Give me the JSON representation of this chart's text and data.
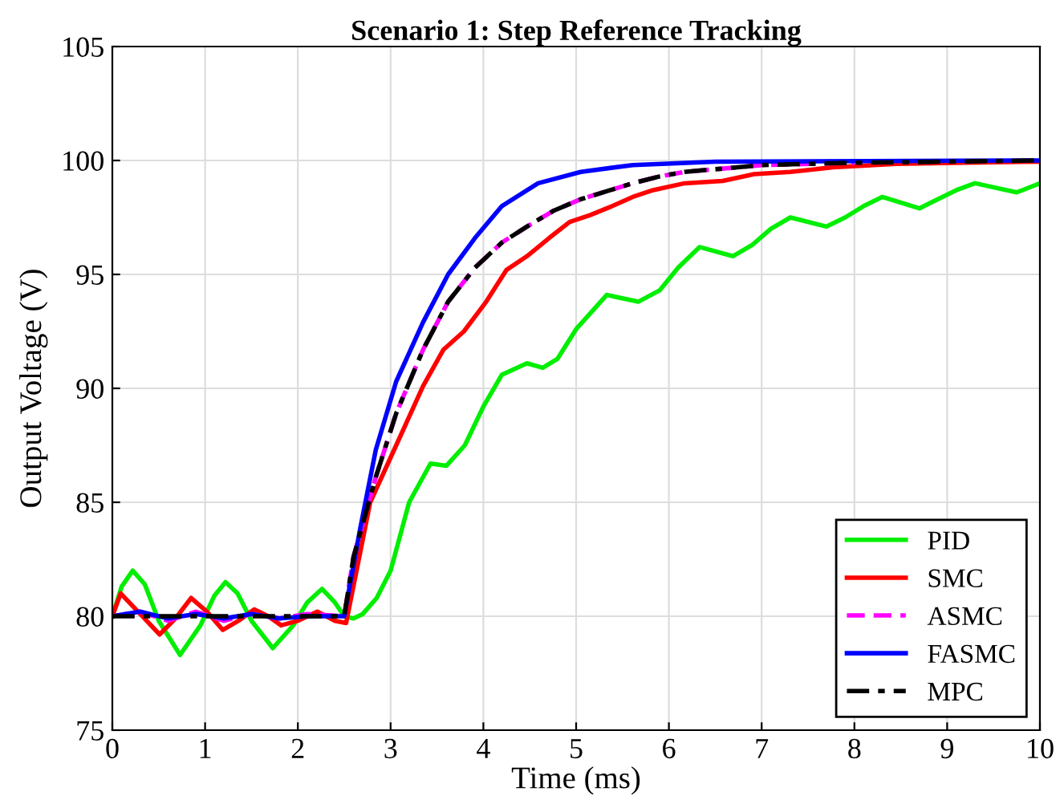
{
  "chart_data": {
    "type": "line",
    "title": "Scenario 1: Step Reference Tracking",
    "xlabel": "Time (ms)",
    "ylabel": "Output Voltage (V)",
    "xlim": [
      0,
      10
    ],
    "ylim": [
      75,
      105
    ],
    "xticks": [
      0,
      1,
      2,
      3,
      4,
      5,
      6,
      7,
      8,
      9,
      10
    ],
    "yticks": [
      75,
      80,
      85,
      90,
      95,
      100,
      105
    ],
    "grid": true,
    "legend": "bottom right",
    "series": [
      {
        "name": "PID",
        "color": "#00ee00",
        "x": [
          0,
          0.1,
          0.22,
          0.35,
          0.5,
          0.73,
          0.95,
          1.1,
          1.22,
          1.35,
          1.5,
          1.73,
          1.95,
          2.1,
          2.26,
          2.4,
          2.5,
          2.6,
          2.7,
          2.85,
          3.0,
          3.2,
          3.43,
          3.6,
          3.8,
          4.0,
          4.2,
          4.47,
          4.64,
          4.8,
          5.0,
          5.33,
          5.67,
          5.9,
          6.1,
          6.33,
          6.69,
          6.9,
          7.1,
          7.31,
          7.7,
          7.9,
          8.1,
          8.3,
          8.7,
          8.9,
          9.1,
          9.3,
          9.75,
          10
        ],
        "values": [
          80,
          81.3,
          82.0,
          81.4,
          79.8,
          78.3,
          79.6,
          80.9,
          81.5,
          81.0,
          79.8,
          78.6,
          79.6,
          80.6,
          81.2,
          80.6,
          80.0,
          79.9,
          80.1,
          80.8,
          82.0,
          85.0,
          86.7,
          86.6,
          87.5,
          89.2,
          90.6,
          91.1,
          90.9,
          91.3,
          92.6,
          94.1,
          93.8,
          94.3,
          95.3,
          96.2,
          95.8,
          96.3,
          97.0,
          97.5,
          97.1,
          97.5,
          98.0,
          98.4,
          97.9,
          98.3,
          98.7,
          99.0,
          98.6,
          99.0
        ]
      },
      {
        "name": "SMC",
        "color": "#ff0000",
        "x": [
          0,
          0.09,
          0.3,
          0.51,
          0.68,
          0.85,
          1.02,
          1.19,
          1.36,
          1.53,
          1.68,
          1.82,
          2.0,
          2.21,
          2.4,
          2.52,
          2.78,
          3.06,
          3.35,
          3.57,
          3.79,
          4.03,
          4.25,
          4.47,
          4.71,
          4.93,
          5.15,
          5.39,
          5.61,
          5.83,
          6.17,
          6.58,
          6.92,
          7.31,
          7.77,
          8.45,
          9.2,
          10
        ],
        "values": [
          80,
          81,
          80.1,
          79.2,
          79.9,
          80.8,
          80.2,
          79.4,
          79.8,
          80.3,
          80.0,
          79.6,
          79.8,
          80.2,
          79.8,
          79.7,
          85,
          87.5,
          90.1,
          91.7,
          92.5,
          93.8,
          95.2,
          95.8,
          96.6,
          97.3,
          97.6,
          98.0,
          98.4,
          98.7,
          99.0,
          99.1,
          99.4,
          99.5,
          99.7,
          99.85,
          99.9,
          99.95
        ]
      },
      {
        "name": "ASMC",
        "color": "#ff00ff",
        "line_style": "dashed",
        "x": [
          0,
          0.3,
          0.6,
          0.9,
          1.2,
          1.5,
          1.8,
          2.1,
          2.5,
          2.6,
          2.84,
          3.06,
          3.35,
          3.62,
          3.91,
          4.2,
          4.47,
          4.76,
          5.05,
          5.61,
          5.9,
          6.17,
          7.02,
          8.0
        ],
        "values": [
          80,
          80.2,
          79.8,
          80.2,
          79.8,
          80.1,
          79.9,
          80.1,
          80,
          82.6,
          86.1,
          88.9,
          91.7,
          93.8,
          95.3,
          96.4,
          97.1,
          97.8,
          98.3,
          99.0,
          99.3,
          99.5,
          99.8,
          99.9
        ]
      },
      {
        "name": "FASMC",
        "color": "#0000ff",
        "x": [
          0,
          0.3,
          0.6,
          0.9,
          1.2,
          1.5,
          1.8,
          2.1,
          2.5,
          2.67,
          2.84,
          3.06,
          3.35,
          3.62,
          3.91,
          4.2,
          4.59,
          5.05,
          5.61,
          6.5,
          10
        ],
        "values": [
          80,
          80.2,
          79.9,
          80.1,
          79.9,
          80.1,
          79.9,
          80.0,
          80,
          83.8,
          87.3,
          90.3,
          92.9,
          95.0,
          96.6,
          98.0,
          99.0,
          99.5,
          99.8,
          99.95,
          100
        ]
      },
      {
        "name": "MPC",
        "color": "#000000",
        "line_style": "dashdot",
        "x": [
          0,
          2.5,
          2.6,
          2.84,
          3.06,
          3.35,
          3.62,
          3.91,
          4.2,
          4.47,
          4.76,
          5.05,
          5.61,
          5.9,
          6.17,
          7.02,
          8.0,
          10
        ],
        "values": [
          80,
          80,
          82.6,
          86.1,
          88.9,
          91.7,
          93.8,
          95.3,
          96.4,
          97.1,
          97.8,
          98.3,
          99.0,
          99.3,
          99.5,
          99.8,
          99.9,
          100
        ]
      }
    ]
  }
}
